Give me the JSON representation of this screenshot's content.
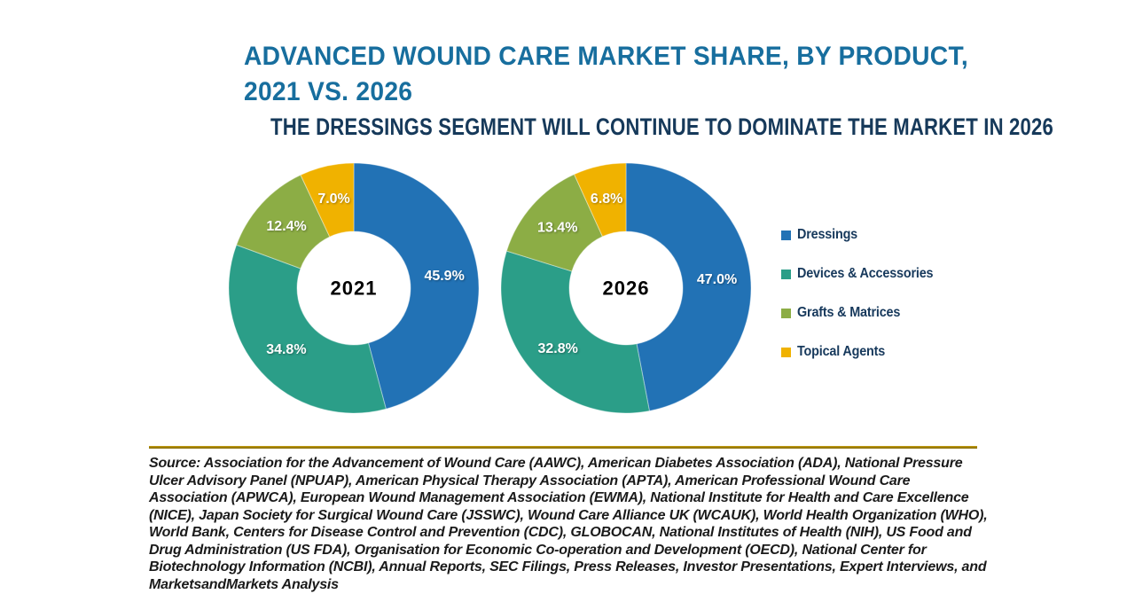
{
  "title": {
    "line1": "ADVANCED WOUND CARE MARKET SHARE, BY PRODUCT,",
    "line2": "2021 VS. 2026"
  },
  "subtitle": "THE DRESSINGS SEGMENT WILL CONTINUE TO DOMINATE THE MARKET IN 2026",
  "chart_data": [
    {
      "type": "pie",
      "title": "2021",
      "center_label": "2021",
      "donut": true,
      "start_angle_deg": 0,
      "direction": "clockwise",
      "categories": [
        "Dressings",
        "Devices & Accessories",
        "Grafts & Matrices",
        "Topical Agents"
      ],
      "values": [
        45.9,
        34.8,
        12.4,
        7.0
      ],
      "labels": [
        "45.9%",
        "34.8%",
        "12.4%",
        "7.0%"
      ],
      "colors": [
        "#2272B5",
        "#2B9E88",
        "#8CAD45",
        "#F0B200"
      ]
    },
    {
      "type": "pie",
      "title": "2026",
      "center_label": "2026",
      "donut": true,
      "start_angle_deg": 0,
      "direction": "clockwise",
      "categories": [
        "Dressings",
        "Devices & Accessories",
        "Grafts & Matrices",
        "Topical Agents"
      ],
      "values": [
        47.0,
        32.8,
        13.4,
        6.8
      ],
      "labels": [
        "47.0%",
        "32.8%",
        "13.4%",
        "6.8%"
      ],
      "colors": [
        "#2272B5",
        "#2B9E88",
        "#8CAD45",
        "#F0B200"
      ]
    }
  ],
  "legend": {
    "items": [
      {
        "label": "Dressings",
        "color": "#2272B5"
      },
      {
        "label": "Devices & Accessories",
        "color": "#2B9E88"
      },
      {
        "label": "Grafts & Matrices",
        "color": "#8CAD45"
      },
      {
        "label": "Topical Agents",
        "color": "#F0B200"
      }
    ]
  },
  "colors": {
    "title_text": "#176E9E",
    "subtitle_text": "#16395A",
    "legend_text": "#17395C",
    "divider": "#A58A00",
    "dressings": "#2272B5",
    "devices_accessories": "#2B9E88",
    "grafts_matrices": "#8CAD45",
    "topical_agents": "#F0B200"
  },
  "divider_color": "#A58A00",
  "source": "Source: Association for the Advancement of Wound Care (AAWC), American Diabetes Association (ADA), National Pressure Ulcer Advisory Panel (NPUAP), American Physical Therapy Association (APTA), American Professional Wound Care Association (APWCA), European Wound Management Association (EWMA), National Institute for Health and Care Excellence (NICE), Japan Society for Surgical Wound Care (JSSWC), Wound Care Alliance UK (WCAUK), World Health Organization (WHO), World Bank, Centers for Disease Control and Prevention (CDC), GLOBOCAN, National Institutes of Health (NIH), US Food and Drug Administration (US FDA), Organisation for Economic Co-operation and Development (OECD), National Center for Biotechnology Information (NCBI), Annual Reports, SEC Filings, Press Releases, Investor Presentations, Expert Interviews, and MarketsandMarkets Analysis"
}
